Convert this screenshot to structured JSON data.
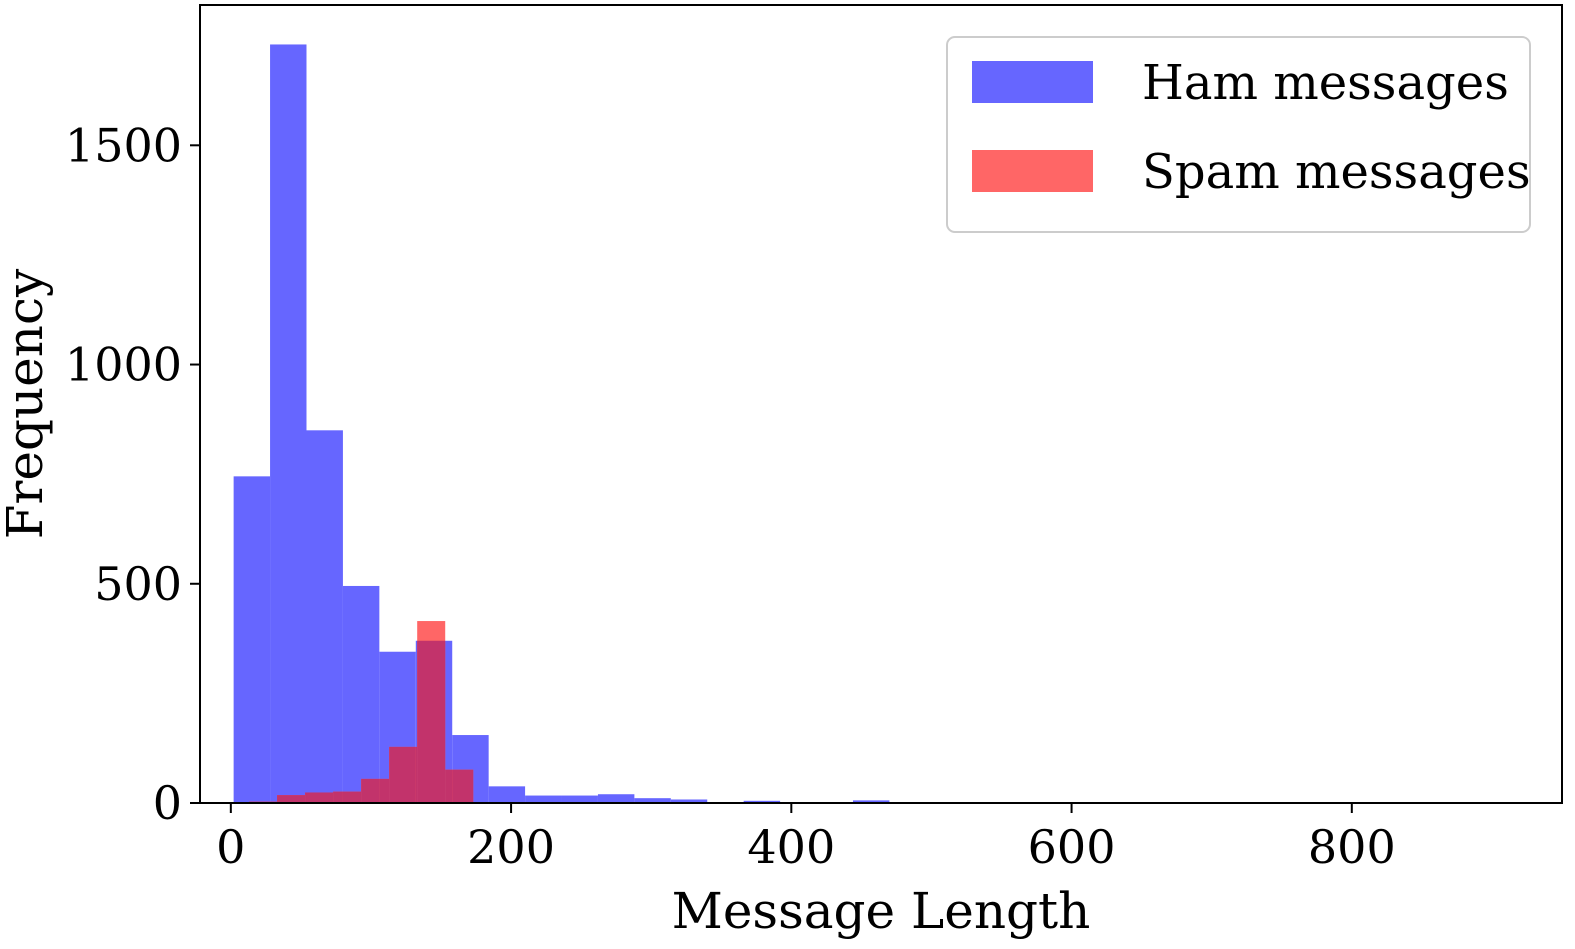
{
  "chart_data": {
    "type": "bar",
    "subtype": "overlapping-histogram",
    "xlabel": "Message Length",
    "ylabel": "Frequency",
    "xlim": [
      -22,
      950
    ],
    "ylim": [
      0,
      1820
    ],
    "xticks": [
      0,
      200,
      400,
      600,
      800
    ],
    "yticks": [
      0,
      500,
      1000,
      1500
    ],
    "grid": false,
    "legend_position": "top-right",
    "series": [
      {
        "name": "Ham messages",
        "color": "#6666ff",
        "bins": [
          {
            "x0": 2,
            "x1": 28,
            "value": 745
          },
          {
            "x0": 28,
            "x1": 54,
            "value": 1730
          },
          {
            "x0": 54,
            "x1": 80,
            "value": 850
          },
          {
            "x0": 80,
            "x1": 106,
            "value": 495
          },
          {
            "x0": 106,
            "x1": 132,
            "value": 345
          },
          {
            "x0": 132,
            "x1": 158,
            "value": 370
          },
          {
            "x0": 158,
            "x1": 184,
            "value": 155
          },
          {
            "x0": 184,
            "x1": 210,
            "value": 38
          },
          {
            "x0": 210,
            "x1": 236,
            "value": 17
          },
          {
            "x0": 236,
            "x1": 262,
            "value": 17
          },
          {
            "x0": 262,
            "x1": 288,
            "value": 20
          },
          {
            "x0": 288,
            "x1": 314,
            "value": 11
          },
          {
            "x0": 314,
            "x1": 340,
            "value": 8
          },
          {
            "x0": 340,
            "x1": 366,
            "value": 2
          },
          {
            "x0": 366,
            "x1": 392,
            "value": 5
          },
          {
            "x0": 392,
            "x1": 418,
            "value": 1
          },
          {
            "x0": 418,
            "x1": 444,
            "value": 1
          },
          {
            "x0": 444,
            "x1": 470,
            "value": 6
          },
          {
            "x0": 470,
            "x1": 496,
            "value": 1
          }
        ]
      },
      {
        "name": "Spam messages",
        "color": "#ff6666",
        "bins": [
          {
            "x0": 13,
            "x1": 33,
            "value": 3
          },
          {
            "x0": 33,
            "x1": 53,
            "value": 18
          },
          {
            "x0": 53,
            "x1": 73,
            "value": 24
          },
          {
            "x0": 73,
            "x1": 93,
            "value": 26
          },
          {
            "x0": 93,
            "x1": 113,
            "value": 55
          },
          {
            "x0": 113,
            "x1": 133,
            "value": 128
          },
          {
            "x0": 133,
            "x1": 153,
            "value": 415
          },
          {
            "x0": 153,
            "x1": 173,
            "value": 76
          }
        ]
      }
    ]
  }
}
